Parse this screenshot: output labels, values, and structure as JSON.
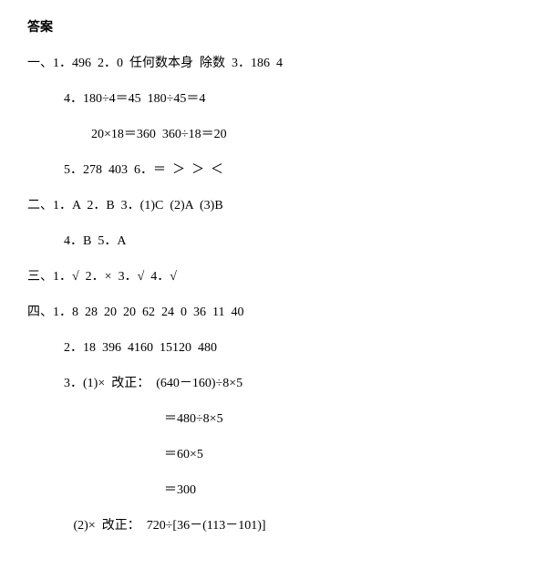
{
  "title": "答案",
  "lines": [
    {
      "cls": "line",
      "text": "一、1．496  2．0  任何数本身  除数  3．186  4"
    },
    {
      "cls": "line indent1",
      "text": "4．180÷4＝45  180÷45＝4"
    },
    {
      "cls": "line indent2",
      "text": "20×18＝360  360÷18＝20"
    },
    {
      "cls": "line indent1",
      "text": "5．278  403  6．＝  ＞  ＞  ＜"
    },
    {
      "cls": "line",
      "text": "二、1．A  2．B  3．(1)C  (2)A  (3)B"
    },
    {
      "cls": "line indent1",
      "text": "4．B  5．A"
    },
    {
      "cls": "line",
      "text": "三、1．√  2．×  3．√  4．√"
    },
    {
      "cls": "line",
      "text": "四、1．8  28  20  20  62  24  0  36  11  40"
    },
    {
      "cls": "line indent1",
      "text": "2．18  396  4160  15120  480"
    },
    {
      "cls": "line indent1",
      "text": "3．(1)×  改正：  (640－160)÷8×5"
    },
    {
      "cls": "line indent3",
      "text": "＝480÷8×5"
    },
    {
      "cls": "line indent3",
      "text": "＝60×5"
    },
    {
      "cls": "line indent3",
      "text": "＝300"
    },
    {
      "cls": "line indent1",
      "text": "   (2)×  改正：  720÷[36－(113－101)]"
    }
  ]
}
